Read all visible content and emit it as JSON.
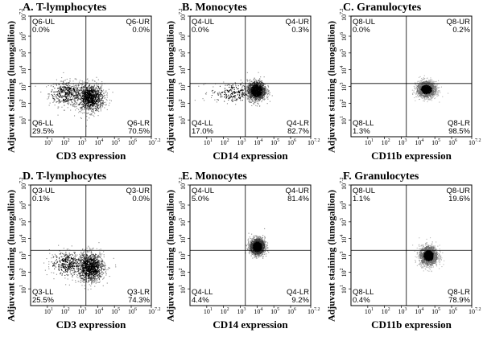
{
  "chart_data": [
    {
      "type": "scatter",
      "title": "A. T-lymphocytes",
      "xlabel": "CD3 expression",
      "ylabel": "Adjuvant staining (lumogallion)",
      "xlim": [
        1,
        16000000
      ],
      "ylim": [
        1,
        16000000
      ],
      "log_scale": true,
      "quadrants": [
        {
          "label": "Q6-UL",
          "value": "0.0%"
        },
        {
          "label": "Q6-UR",
          "value": "0.0%"
        },
        {
          "label": "Q6-LL",
          "value": "29.5%"
        },
        {
          "label": "Q6-LR",
          "value": "70.5%"
        }
      ],
      "clusters": [
        {
          "x": 150,
          "y": 400,
          "sx": 0.55,
          "sy": 0.38,
          "weight": 0.295
        },
        {
          "x": 3500,
          "y": 220,
          "sx": 0.42,
          "sy": 0.42,
          "weight": 0.705
        }
      ]
    },
    {
      "type": "scatter",
      "title": "B. Monocytes",
      "xlabel": "CD14 expression",
      "ylabel": "Adjuvant staining (lumogallion)",
      "xlim": [
        1,
        16000000
      ],
      "ylim": [
        1,
        16000000
      ],
      "log_scale": true,
      "quadrants": [
        {
          "label": "Q4-UL",
          "value": "0.0%"
        },
        {
          "label": "Q4-UR",
          "value": "0.3%"
        },
        {
          "label": "Q4-LL",
          "value": "17.0%"
        },
        {
          "label": "Q4-LR",
          "value": "82.7%"
        }
      ],
      "clusters": [
        {
          "x": 400,
          "y": 450,
          "sx": 0.7,
          "sy": 0.3,
          "weight": 0.17
        },
        {
          "x": 9000,
          "y": 600,
          "sx": 0.28,
          "sy": 0.3,
          "weight": 0.83
        }
      ]
    },
    {
      "type": "scatter",
      "title": "C. Granulocytes",
      "xlabel": "CD11b expression",
      "ylabel": "Adjuvant staining (lumogallion)",
      "xlim": [
        1,
        16000000
      ],
      "ylim": [
        1,
        16000000
      ],
      "log_scale": true,
      "quadrants": [
        {
          "label": "Q8-UL",
          "value": "0.0%"
        },
        {
          "label": "Q8-UR",
          "value": "0.2%"
        },
        {
          "label": "Q8-LL",
          "value": "1.3%"
        },
        {
          "label": "Q8-LR",
          "value": "98.5%"
        }
      ],
      "clusters": [
        {
          "x": 30000,
          "y": 700,
          "sx": 0.3,
          "sy": 0.25,
          "weight": 1.0
        }
      ]
    },
    {
      "type": "scatter",
      "title": "D. T-lymphocytes",
      "xlabel": "CD3 expression",
      "ylabel": "Adjuvant staining (lumogallion)",
      "xlim": [
        1,
        16000000
      ],
      "ylim": [
        1,
        16000000
      ],
      "log_scale": true,
      "quadrants": [
        {
          "label": "Q3-UL",
          "value": "0.1%"
        },
        {
          "label": "Q3-UR",
          "value": "0.0%"
        },
        {
          "label": "Q3-LL",
          "value": "25.5%"
        },
        {
          "label": "Q3-LR",
          "value": "74.3%"
        }
      ],
      "clusters": [
        {
          "x": 180,
          "y": 350,
          "sx": 0.55,
          "sy": 0.38,
          "weight": 0.255
        },
        {
          "x": 3500,
          "y": 200,
          "sx": 0.42,
          "sy": 0.45,
          "weight": 0.745
        }
      ]
    },
    {
      "type": "scatter",
      "title": "E. Monocytes",
      "xlabel": "CD14 expression",
      "ylabel": "Adjuvant staining (lumogallion)",
      "xlim": [
        1,
        16000000
      ],
      "ylim": [
        1,
        16000000
      ],
      "log_scale": true,
      "quadrants": [
        {
          "label": "Q4-UL",
          "value": "5.0%"
        },
        {
          "label": "Q4-UR",
          "value": "81.4%"
        },
        {
          "label": "Q4-LL",
          "value": "4.4%"
        },
        {
          "label": "Q4-LR",
          "value": "9.2%"
        }
      ],
      "clusters": [
        {
          "x": 10000,
          "y": 3500,
          "sx": 0.22,
          "sy": 0.25,
          "weight": 1.0
        }
      ]
    },
    {
      "type": "scatter",
      "title": "F. Granulocytes",
      "xlabel": "CD11b expression",
      "ylabel": "Adjuvant staining (lumogallion)",
      "xlim": [
        1,
        16000000
      ],
      "ylim": [
        1,
        16000000
      ],
      "log_scale": true,
      "quadrants": [
        {
          "label": "Q8-UL",
          "value": "1.1%"
        },
        {
          "label": "Q8-UR",
          "value": "19.6%"
        },
        {
          "label": "Q8-LL",
          "value": "0.4%"
        },
        {
          "label": "Q8-LR",
          "value": "78.9%"
        }
      ],
      "clusters": [
        {
          "x": 40000,
          "y": 1000,
          "sx": 0.28,
          "sy": 0.3,
          "weight": 1.0
        }
      ]
    }
  ],
  "layout": {
    "tick_labels": [
      "10",
      "10",
      "10",
      "10",
      "10",
      "10",
      "10"
    ],
    "tick_exponents": [
      "1",
      "2",
      "3",
      "4",
      "5",
      "6",
      "7.2"
    ],
    "gate_x": 2000,
    "gate_y_top": 2000,
    "gate_y_bottom": 1500
  }
}
